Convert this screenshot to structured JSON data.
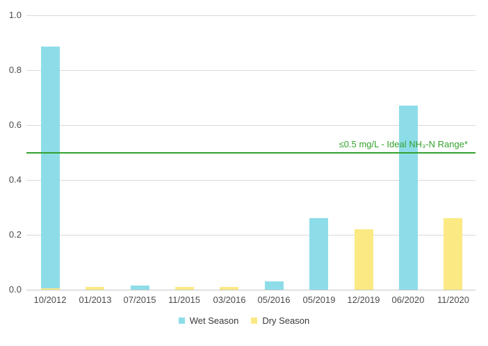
{
  "chart_data": {
    "type": "bar",
    "title": "",
    "categories": [
      "10/2012",
      "01/2013",
      "07/2015",
      "11/2015",
      "03/2016",
      "05/2016",
      "05/2019",
      "12/2019",
      "06/2020",
      "11/2020"
    ],
    "series": [
      {
        "name": "Wet Season",
        "color": "#8DDDE9",
        "values": [
          0.885,
          null,
          0.015,
          null,
          null,
          0.03,
          0.26,
          null,
          0.67,
          null
        ]
      },
      {
        "name": "Dry Season",
        "color": "#FBEA84",
        "values": [
          0.005,
          0.01,
          null,
          0.01,
          0.01,
          null,
          null,
          0.22,
          null,
          0.26
        ]
      }
    ],
    "xlabel": "",
    "ylabel": "",
    "ylim": [
      0,
      1.0
    ],
    "ytick_step": 0.2,
    "ytick_labels": [
      "0.0",
      "0.2",
      "0.4",
      "0.6",
      "0.8",
      "1.0"
    ],
    "grid": "horizontal",
    "legend_position": "bottom",
    "reference_line": {
      "value": 0.5,
      "label": "≤0.5 mg/L - Ideal NH₃-N Range*",
      "color": "#33A12C"
    },
    "colors": {
      "grid": "#D9D9D9",
      "axis_line": "#C6C6C6",
      "tick_text": "#4B4B4B",
      "legend_text": "#373737",
      "background": "#FFFFFF"
    }
  }
}
